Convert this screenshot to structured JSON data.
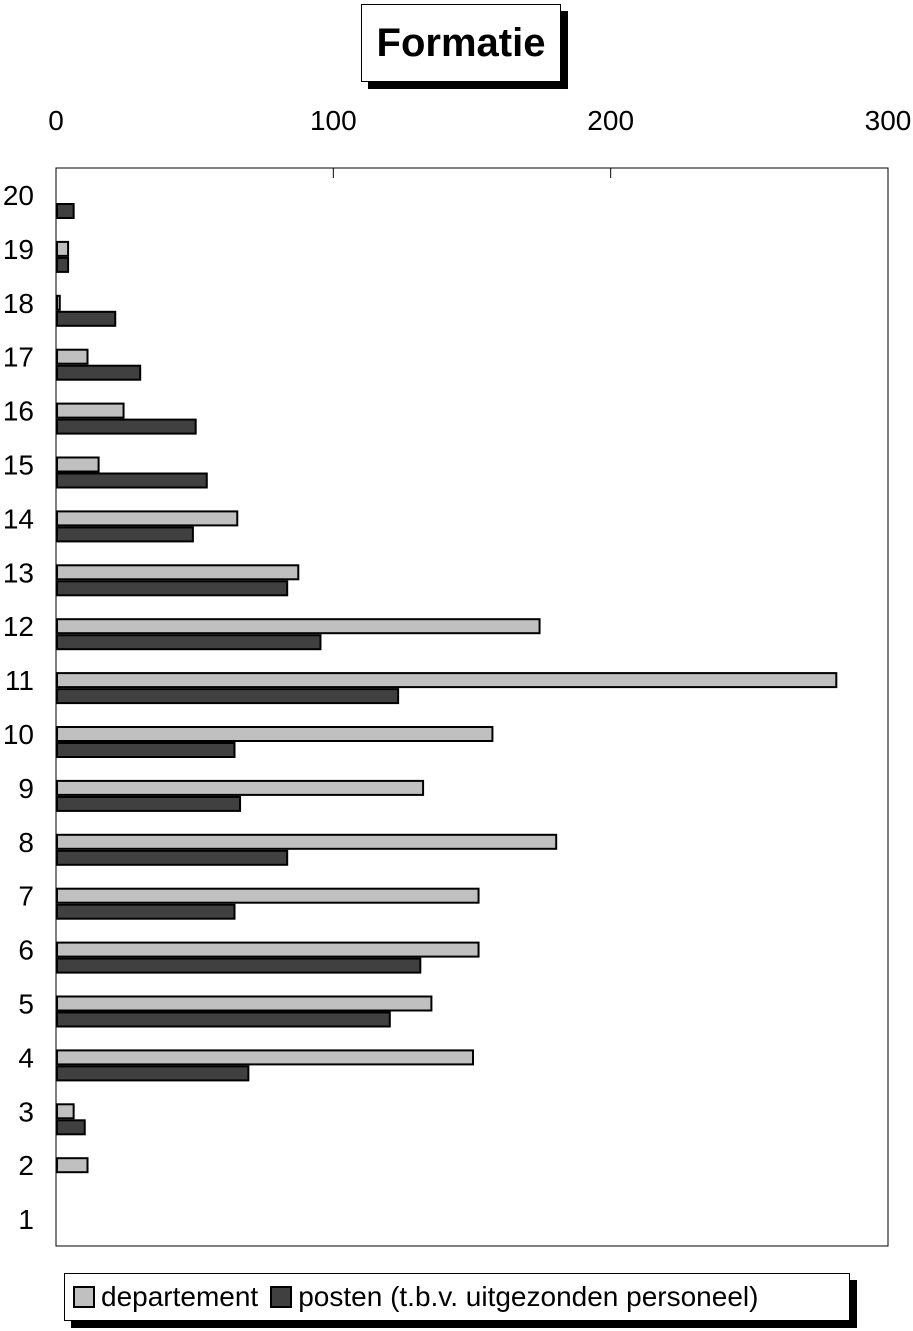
{
  "chart_data": {
    "type": "bar",
    "orientation": "horizontal",
    "title": "Formatie",
    "categories": [
      "1",
      "2",
      "3",
      "4",
      "5",
      "6",
      "7",
      "8",
      "9",
      "10",
      "11",
      "12",
      "13",
      "14",
      "15",
      "16",
      "17",
      "18",
      "19",
      "20"
    ],
    "series": [
      {
        "name": "departement",
        "color": "#c0c0c0",
        "values": [
          0,
          11,
          6,
          150,
          135,
          152,
          152,
          180,
          132,
          157,
          281,
          174,
          87,
          65,
          15,
          24,
          11,
          1,
          4,
          0
        ]
      },
      {
        "name": "posten (t.b.v. uitgezonden personeel)",
        "color": "#404040",
        "values": [
          0,
          0,
          10,
          69,
          120,
          131,
          64,
          83,
          66,
          64,
          123,
          95,
          83,
          49,
          54,
          50,
          30,
          21,
          4,
          6
        ]
      }
    ],
    "xlim": [
      0,
      300
    ],
    "xticks": [
      "0",
      "100",
      "200",
      "300"
    ],
    "grid": false,
    "legend_position": "bottom"
  }
}
